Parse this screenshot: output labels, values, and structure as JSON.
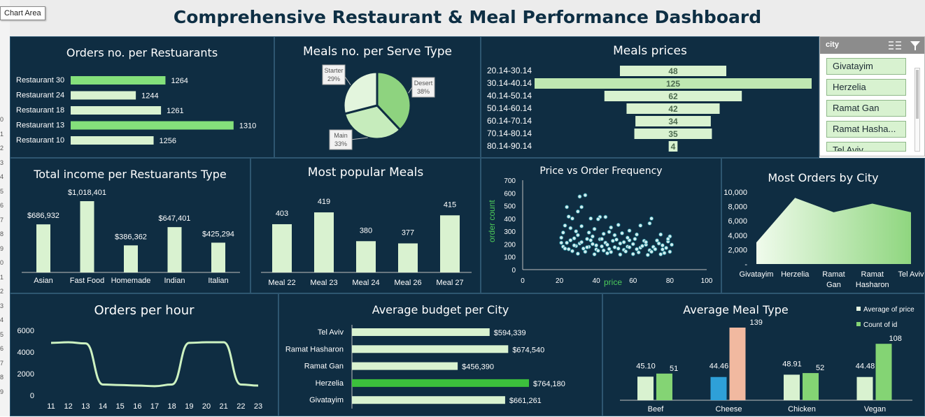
{
  "tooltip": "Chart Area",
  "row_numbers": [
    "0",
    "1",
    "2",
    "3",
    "4",
    "5",
    "6",
    "7",
    "8",
    "9",
    "0",
    "1",
    "2",
    "3",
    "4",
    "5",
    "6",
    "7",
    "8",
    "9"
  ],
  "dashboard_title": "Comprehensive Restaurant & Meal Performance Dashboard",
  "slicer": {
    "title": "city",
    "items": [
      "Givatayim",
      "Herzelia",
      "Ramat Gan",
      "Ramat Hasha...",
      "Tel Aviv"
    ]
  },
  "colors": {
    "panel": "#0f2d42",
    "bar_light": "#d9f2d0",
    "bar_highlight": "#84e07b",
    "bar_dark_green": "#3cc03c",
    "peach": "#f1b9a0",
    "blue": "#2ea0d8",
    "grid": "#9fb3c0"
  },
  "chart_data": [
    {
      "id": "orders_per_restaurant",
      "type": "bar",
      "orientation": "horizontal",
      "title": "Orders no. per Restuarants",
      "categories": [
        "Restaurant 30",
        "Restaurant 24",
        "Restaurant 18",
        "Restaurant 13",
        "Restaurant 10"
      ],
      "values": [
        1264,
        1244,
        1261,
        1310,
        1256
      ],
      "value_labels": [
        "1264",
        "1244",
        "1261",
        "1310",
        "1256"
      ],
      "highlight": [
        0,
        3
      ],
      "xlim": [
        1200,
        1320
      ]
    },
    {
      "id": "meals_per_serve_type",
      "type": "pie",
      "title": "Meals no. per Serve Type",
      "slices": [
        {
          "label": "Desert",
          "value": 38,
          "display": "38%",
          "color": "#8ed37f"
        },
        {
          "label": "Main",
          "value": 33,
          "display": "33%",
          "color": "#c6ecbc"
        },
        {
          "label": "Starter",
          "value": 29,
          "display": "29%",
          "color": "#e3f5dd"
        }
      ]
    },
    {
      "id": "meals_prices",
      "type": "bar",
      "orientation": "horizontal-centered",
      "title": "Meals prices",
      "categories": [
        "20.14-30.14",
        "30.14-40.14",
        "40.14-50.14",
        "50.14-60.14",
        "60.14-70.14",
        "70.14-80.14",
        "80.14-90.14"
      ],
      "values": [
        48,
        125,
        62,
        42,
        34,
        35,
        4
      ],
      "value_labels": [
        "48",
        "125",
        "62",
        "42",
        "34",
        "35",
        "4"
      ],
      "highlight": [
        1
      ]
    },
    {
      "id": "income_per_type",
      "type": "bar",
      "title": "Total income per Restuarants Type",
      "categories": [
        "Asian",
        "Fast Food",
        "Homemade",
        "Indian",
        "Italian"
      ],
      "values": [
        686932,
        1018401,
        386362,
        647401,
        425294
      ],
      "value_labels": [
        "$686,932",
        "$1,018,401",
        "$386,362",
        "$647,401",
        "$425,294"
      ],
      "ylim": [
        0,
        1018401
      ]
    },
    {
      "id": "most_popular_meals",
      "type": "bar",
      "title": "Most popular Meals",
      "categories": [
        "Meal 22",
        "Meal 23",
        "Meal 24",
        "Meal 26",
        "Meal 27"
      ],
      "values": [
        403,
        419,
        380,
        377,
        415
      ],
      "value_labels": [
        "403",
        "419",
        "380",
        "377",
        "415"
      ],
      "ylim": [
        350,
        420
      ]
    },
    {
      "id": "price_vs_order",
      "type": "scatter",
      "title": "Price vs Order Frequency",
      "xlabel": "price",
      "ylabel": "order count",
      "xlim": [
        0,
        100
      ],
      "ylim": [
        0,
        700
      ],
      "xticks": [
        "0",
        "20",
        "40",
        "60",
        "80",
        "100"
      ],
      "yticks": [
        "0",
        "100",
        "200",
        "300",
        "400",
        "500",
        "600",
        "700"
      ],
      "points": [
        [
          34,
          583
        ],
        [
          31,
          572
        ],
        [
          24,
          490
        ],
        [
          32,
          490
        ],
        [
          30,
          455
        ],
        [
          25,
          415
        ],
        [
          42,
          412
        ],
        [
          45,
          412
        ],
        [
          27,
          400
        ],
        [
          37,
          400
        ],
        [
          70,
          400
        ],
        [
          41,
          395
        ],
        [
          64,
          345
        ],
        [
          69,
          362
        ],
        [
          52,
          350
        ],
        [
          23,
          345
        ],
        [
          32,
          340
        ],
        [
          26,
          325
        ],
        [
          48,
          330
        ],
        [
          58,
          305
        ],
        [
          39,
          318
        ],
        [
          29,
          300
        ],
        [
          47,
          295
        ],
        [
          36,
          290
        ],
        [
          22,
          290
        ],
        [
          54,
          285
        ],
        [
          44,
          280
        ],
        [
          62,
          275
        ],
        [
          75,
          275
        ],
        [
          80,
          260
        ],
        [
          21,
          250
        ],
        [
          28,
          245
        ],
        [
          35,
          240
        ],
        [
          42,
          238
        ],
        [
          51,
          235
        ],
        [
          58,
          230
        ],
        [
          66,
          225
        ],
        [
          73,
          228
        ],
        [
          79,
          220
        ],
        [
          24,
          210
        ],
        [
          31,
          205
        ],
        [
          38,
          200
        ],
        [
          45,
          210
        ],
        [
          53,
          205
        ],
        [
          60,
          200
        ],
        [
          67,
          195
        ],
        [
          74,
          205
        ],
        [
          81,
          195
        ],
        [
          22,
          180
        ],
        [
          29,
          185
        ],
        [
          36,
          178
        ],
        [
          43,
          182
        ],
        [
          50,
          175
        ],
        [
          57,
          180
        ],
        [
          64,
          172
        ],
        [
          71,
          178
        ],
        [
          78,
          170
        ],
        [
          25,
          160
        ],
        [
          33,
          165
        ],
        [
          40,
          158
        ],
        [
          47,
          162
        ],
        [
          55,
          155
        ],
        [
          62,
          160
        ],
        [
          69,
          152
        ],
        [
          76,
          158
        ],
        [
          27,
          145
        ],
        [
          34,
          140
        ],
        [
          41,
          148
        ],
        [
          48,
          138
        ],
        [
          56,
          142
        ],
        [
          63,
          135
        ],
        [
          70,
          140
        ],
        [
          77,
          130
        ],
        [
          30,
          125
        ],
        [
          39,
          120
        ],
        [
          46,
          128
        ],
        [
          53,
          118
        ],
        [
          60,
          122
        ],
        [
          68,
          115
        ],
        [
          75,
          120
        ],
        [
          80,
          140
        ],
        [
          21,
          210
        ],
        [
          23,
          165
        ],
        [
          26,
          230
        ],
        [
          28,
          190
        ],
        [
          32,
          215
        ],
        [
          35,
          175
        ],
        [
          37,
          230
        ],
        [
          40,
          190
        ],
        [
          43,
          240
        ],
        [
          46,
          195
        ],
        [
          49,
          225
        ],
        [
          52,
          165
        ],
        [
          55,
          215
        ],
        [
          58,
          175
        ],
        [
          61,
          240
        ],
        [
          65,
          185
        ],
        [
          67,
          215
        ],
        [
          72,
          160
        ],
        [
          76,
          190
        ],
        [
          79,
          240
        ],
        [
          44,
          150
        ],
        [
          38,
          260
        ],
        [
          50,
          270
        ],
        [
          30,
          270
        ],
        [
          57,
          250
        ]
      ]
    },
    {
      "id": "orders_by_city",
      "type": "area",
      "title": "Most Orders by City",
      "categories": [
        "Givatayim",
        "Herzelia",
        "Ramat Gan",
        "Ramat Hasharon",
        "Tel Aviv"
      ],
      "category_lines": [
        [
          "Givatayim"
        ],
        [
          "Herzelia"
        ],
        [
          "Ramat",
          "Gan"
        ],
        [
          "Ramat",
          "Hasharon"
        ],
        [
          "Tel Aviv"
        ]
      ],
      "values": [
        3000,
        9200,
        7200,
        8400,
        7200
      ],
      "ylim": [
        0,
        10000
      ],
      "yticks": [
        "-",
        "2,000",
        "4,000",
        "6,000",
        "8,000",
        "10,000"
      ]
    },
    {
      "id": "orders_per_hour",
      "type": "line",
      "title": "Orders per hour",
      "x": [
        "11",
        "12",
        "13",
        "14",
        "15",
        "16",
        "17",
        "18",
        "19",
        "20",
        "21",
        "22",
        "23"
      ],
      "values": [
        4850,
        4900,
        4800,
        1000,
        950,
        900,
        850,
        1000,
        4850,
        4900,
        4900,
        1000,
        900
      ],
      "ylim": [
        0,
        6000
      ],
      "yticks": [
        "0",
        "2000",
        "4000",
        "6000"
      ]
    },
    {
      "id": "avg_budget_city",
      "type": "bar",
      "orientation": "horizontal",
      "title": "Average budget per City",
      "categories": [
        "Tel Aviv",
        "Ramat Hasharon",
        "Ramat Gan",
        "Herzelia",
        "Givatayim"
      ],
      "values": [
        594339,
        674540,
        456390,
        764180,
        661261
      ],
      "value_labels": [
        "$594,339",
        "$674,540",
        "$456,390",
        "$764,180",
        "$661,261"
      ],
      "highlight": [
        3
      ],
      "xlim": [
        0,
        764180
      ]
    },
    {
      "id": "avg_meal_type",
      "type": "bar",
      "title": "Average Meal Type",
      "categories": [
        "Beef",
        "Cheese",
        "Chicken",
        "Vegan"
      ],
      "series": [
        {
          "name": "Average of price",
          "values": [
            45.1,
            44.46,
            48.91,
            44.48
          ],
          "labels": [
            "45.10",
            "44.46",
            "48.91",
            "44.48"
          ],
          "color": "#d9f2d0"
        },
        {
          "name": "Count of id",
          "values": [
            51,
            139,
            52,
            108
          ],
          "labels": [
            "51",
            "139",
            "52",
            "108"
          ],
          "color": "#84d474"
        }
      ],
      "legend": "top-right"
    }
  ]
}
